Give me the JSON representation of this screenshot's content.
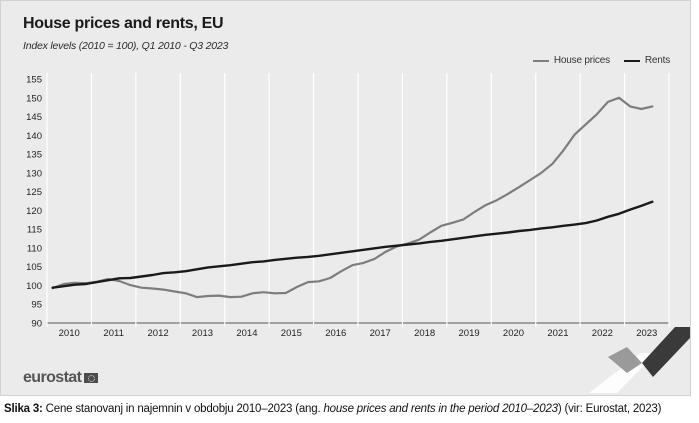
{
  "header": {
    "title": "House prices and rents, EU",
    "subtitle": "Index levels (2010 = 100), Q1 2010 - Q3 2023"
  },
  "legend": [
    {
      "label": "House prices",
      "color": "#7d7d7d"
    },
    {
      "label": "Rents",
      "color": "#1a1a1a"
    }
  ],
  "logo": "eurostat",
  "caption": {
    "prefix": "Slika 3:",
    "text_before": " Cene stanovanj in najemnin v obdobju 2010–2023 (ang. ",
    "text_italic": "house prices and rents in the period 2010–2023",
    "text_after": ") (vir: Eurostat, 2023)"
  },
  "chart_data": {
    "type": "line",
    "title": "House prices and rents, EU",
    "subtitle": "Index levels (2010 = 100), Q1 2010 - Q3 2023",
    "x_tick_labels": [
      "2010",
      "2011",
      "2012",
      "2013",
      "2014",
      "2015",
      "2016",
      "2017",
      "2018",
      "2019",
      "2020",
      "2021",
      "2022",
      "2023"
    ],
    "y_ticks": [
      90,
      95,
      100,
      105,
      110,
      115,
      120,
      125,
      130,
      135,
      140,
      145,
      150,
      155
    ],
    "ylim": [
      90,
      155
    ],
    "grid": "vertical year separators",
    "legend_position": "top-right",
    "x": [
      "2010-Q1",
      "2010-Q2",
      "2010-Q3",
      "2010-Q4",
      "2011-Q1",
      "2011-Q2",
      "2011-Q3",
      "2011-Q4",
      "2012-Q1",
      "2012-Q2",
      "2012-Q3",
      "2012-Q4",
      "2013-Q1",
      "2013-Q2",
      "2013-Q3",
      "2013-Q4",
      "2014-Q1",
      "2014-Q2",
      "2014-Q3",
      "2014-Q4",
      "2015-Q1",
      "2015-Q2",
      "2015-Q3",
      "2015-Q4",
      "2016-Q1",
      "2016-Q2",
      "2016-Q3",
      "2016-Q4",
      "2017-Q1",
      "2017-Q2",
      "2017-Q3",
      "2017-Q4",
      "2018-Q1",
      "2018-Q2",
      "2018-Q3",
      "2018-Q4",
      "2019-Q1",
      "2019-Q2",
      "2019-Q3",
      "2019-Q4",
      "2020-Q1",
      "2020-Q2",
      "2020-Q3",
      "2020-Q4",
      "2021-Q1",
      "2021-Q2",
      "2021-Q3",
      "2021-Q4",
      "2022-Q1",
      "2022-Q2",
      "2022-Q3",
      "2022-Q4",
      "2023-Q1",
      "2023-Q2",
      "2023-Q3"
    ],
    "series": [
      {
        "name": "House prices",
        "color": "#7d7d7d",
        "values": [
          99.3,
          100.4,
          100.7,
          100.6,
          101.0,
          101.7,
          101.2,
          100.1,
          99.4,
          99.2,
          98.9,
          98.4,
          97.9,
          96.9,
          97.2,
          97.3,
          96.9,
          97.0,
          97.9,
          98.2,
          97.9,
          98.0,
          99.6,
          100.9,
          101.1,
          102.0,
          103.8,
          105.4,
          106.0,
          107.1,
          109.0,
          110.4,
          111.2,
          112.2,
          114.1,
          115.9,
          116.7,
          117.6,
          119.6,
          121.4,
          122.7,
          124.4,
          126.2,
          128.1,
          130.0,
          132.4,
          136.0,
          140.2,
          142.9,
          145.6,
          148.9,
          150.0,
          147.7,
          147.0,
          147.7
        ]
      },
      {
        "name": "Rents",
        "color": "#1a1a1a",
        "values": [
          99.4,
          99.8,
          100.2,
          100.4,
          100.9,
          101.4,
          101.9,
          102.0,
          102.4,
          102.8,
          103.3,
          103.5,
          103.8,
          104.3,
          104.8,
          105.1,
          105.4,
          105.8,
          106.2,
          106.4,
          106.8,
          107.1,
          107.4,
          107.6,
          107.9,
          108.3,
          108.7,
          109.1,
          109.5,
          109.9,
          110.3,
          110.6,
          110.9,
          111.2,
          111.6,
          111.9,
          112.3,
          112.7,
          113.1,
          113.5,
          113.8,
          114.1,
          114.5,
          114.8,
          115.2,
          115.5,
          115.9,
          116.2,
          116.6,
          117.3,
          118.3,
          119.1,
          120.2,
          121.2,
          122.3
        ]
      }
    ]
  }
}
